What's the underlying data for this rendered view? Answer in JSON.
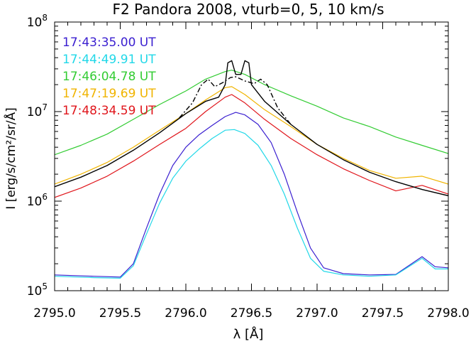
{
  "chart_data": {
    "type": "line",
    "title": "F2 Pandora 2008, vturb=0, 5, 10 km/s",
    "xlabel": "λ [Å]",
    "ylabel": "I [erg/s/cm²/sr/Å]",
    "xlim": [
      2795.0,
      2798.0
    ],
    "ylim": [
      100000,
      100000000
    ],
    "yscale": "log",
    "grid": false,
    "legend_position": "top-left",
    "x_ticks": [
      2795.0,
      2795.5,
      2796.0,
      2796.5,
      2797.0,
      2797.5,
      2798.0
    ],
    "x_tick_labels": [
      "2795.0",
      "2795.5",
      "2796.0",
      "2796.5",
      "2797.0",
      "2797.5",
      "2798.0"
    ],
    "y_tick_labels": [
      {
        "base": "10",
        "exp": "5",
        "value": 100000
      },
      {
        "base": "10",
        "exp": "6",
        "value": 1000000
      },
      {
        "base": "10",
        "exp": "7",
        "value": 10000000
      },
      {
        "base": "10",
        "exp": "8",
        "value": 100000000
      }
    ],
    "series": [
      {
        "name": "17:43:35.00 UT",
        "color": "#3a1fd0",
        "style": "solid",
        "points": [
          [
            2795.0,
            150000
          ],
          [
            2795.3,
            145000
          ],
          [
            2795.5,
            142000
          ],
          [
            2795.6,
            200000
          ],
          [
            2795.7,
            500000
          ],
          [
            2795.8,
            1200000
          ],
          [
            2795.9,
            2500000
          ],
          [
            2796.0,
            4000000
          ],
          [
            2796.1,
            5500000
          ],
          [
            2796.2,
            7000000
          ],
          [
            2796.3,
            8800000
          ],
          [
            2796.38,
            9800000
          ],
          [
            2796.45,
            9200000
          ],
          [
            2796.55,
            7200000
          ],
          [
            2796.65,
            4500000
          ],
          [
            2796.75,
            2000000
          ],
          [
            2796.85,
            750000
          ],
          [
            2796.95,
            300000
          ],
          [
            2797.05,
            180000
          ],
          [
            2797.2,
            155000
          ],
          [
            2797.4,
            150000
          ],
          [
            2797.6,
            152000
          ],
          [
            2797.8,
            240000
          ],
          [
            2797.9,
            185000
          ],
          [
            2798.0,
            180000
          ]
        ]
      },
      {
        "name": "17:44:49.91 UT",
        "color": "#22d8e8",
        "style": "solid",
        "points": [
          [
            2795.0,
            145000
          ],
          [
            2795.3,
            140000
          ],
          [
            2795.5,
            138000
          ],
          [
            2795.6,
            190000
          ],
          [
            2795.7,
            430000
          ],
          [
            2795.8,
            950000
          ],
          [
            2795.9,
            1800000
          ],
          [
            2796.0,
            2800000
          ],
          [
            2796.1,
            3800000
          ],
          [
            2796.2,
            5000000
          ],
          [
            2796.3,
            6200000
          ],
          [
            2796.37,
            6300000
          ],
          [
            2796.45,
            5700000
          ],
          [
            2796.55,
            4200000
          ],
          [
            2796.65,
            2500000
          ],
          [
            2796.75,
            1200000
          ],
          [
            2796.85,
            500000
          ],
          [
            2796.95,
            230000
          ],
          [
            2797.05,
            165000
          ],
          [
            2797.2,
            150000
          ],
          [
            2797.4,
            145000
          ],
          [
            2797.6,
            150000
          ],
          [
            2797.8,
            230000
          ],
          [
            2797.9,
            175000
          ],
          [
            2798.0,
            175000
          ]
        ]
      },
      {
        "name": "17:46:04.78 UT",
        "color": "#33cc33",
        "style": "solid",
        "points": [
          [
            2795.0,
            3300000
          ],
          [
            2795.2,
            4200000
          ],
          [
            2795.4,
            5600000
          ],
          [
            2795.6,
            8200000
          ],
          [
            2795.8,
            12000000
          ],
          [
            2796.0,
            17000000
          ],
          [
            2796.15,
            23000000
          ],
          [
            2796.3,
            28000000
          ],
          [
            2796.35,
            29000000
          ],
          [
            2796.45,
            26000000
          ],
          [
            2796.6,
            20000000
          ],
          [
            2796.8,
            15000000
          ],
          [
            2797.0,
            11500000
          ],
          [
            2797.2,
            8500000
          ],
          [
            2797.4,
            6800000
          ],
          [
            2797.6,
            5200000
          ],
          [
            2797.8,
            4200000
          ],
          [
            2798.0,
            3400000
          ]
        ]
      },
      {
        "name": "17:47:19.69 UT",
        "color": "#f0b400",
        "style": "solid",
        "points": [
          [
            2795.0,
            1550000
          ],
          [
            2795.2,
            2000000
          ],
          [
            2795.4,
            2700000
          ],
          [
            2795.6,
            4000000
          ],
          [
            2795.8,
            6200000
          ],
          [
            2796.0,
            9500000
          ],
          [
            2796.15,
            13500000
          ],
          [
            2796.3,
            18500000
          ],
          [
            2796.35,
            19000000
          ],
          [
            2796.45,
            15500000
          ],
          [
            2796.6,
            10500000
          ],
          [
            2796.8,
            6800000
          ],
          [
            2797.0,
            4300000
          ],
          [
            2797.2,
            3000000
          ],
          [
            2797.4,
            2200000
          ],
          [
            2797.6,
            1800000
          ],
          [
            2797.8,
            1900000
          ],
          [
            2798.0,
            1550000
          ]
        ]
      },
      {
        "name": "17:48:34.59 UT",
        "color": "#e0161c",
        "style": "solid",
        "points": [
          [
            2795.0,
            1100000
          ],
          [
            2795.2,
            1400000
          ],
          [
            2795.4,
            1900000
          ],
          [
            2795.6,
            2800000
          ],
          [
            2795.8,
            4300000
          ],
          [
            2796.0,
            6500000
          ],
          [
            2796.15,
            10000000
          ],
          [
            2796.3,
            14500000
          ],
          [
            2796.35,
            15500000
          ],
          [
            2796.45,
            12500000
          ],
          [
            2796.6,
            8200000
          ],
          [
            2796.8,
            5000000
          ],
          [
            2797.0,
            3300000
          ],
          [
            2797.2,
            2300000
          ],
          [
            2797.4,
            1700000
          ],
          [
            2797.6,
            1300000
          ],
          [
            2797.8,
            1500000
          ],
          [
            2798.0,
            1200000
          ]
        ]
      },
      {
        "color": "#000000",
        "style": "solid",
        "points": [
          [
            2795.0,
            1450000
          ],
          [
            2795.2,
            1850000
          ],
          [
            2795.4,
            2500000
          ],
          [
            2795.6,
            3700000
          ],
          [
            2795.8,
            5800000
          ],
          [
            2796.0,
            9500000
          ],
          [
            2796.15,
            13000000
          ],
          [
            2796.25,
            14500000
          ],
          [
            2796.3,
            20000000
          ],
          [
            2796.32,
            35000000
          ],
          [
            2796.35,
            37000000
          ],
          [
            2796.38,
            26000000
          ],
          [
            2796.42,
            26000000
          ],
          [
            2796.45,
            37000000
          ],
          [
            2796.48,
            35000000
          ],
          [
            2796.5,
            20000000
          ],
          [
            2796.6,
            13000000
          ],
          [
            2796.8,
            7200000
          ],
          [
            2797.0,
            4300000
          ],
          [
            2797.2,
            2900000
          ],
          [
            2797.4,
            2100000
          ],
          [
            2797.6,
            1650000
          ],
          [
            2797.8,
            1350000
          ],
          [
            2798.0,
            1150000
          ]
        ]
      },
      {
        "color": "#000000",
        "style": "dashdot",
        "points": [
          [
            2795.95,
            8500000
          ],
          [
            2796.05,
            12500000
          ],
          [
            2796.12,
            20000000
          ],
          [
            2796.17,
            23000000
          ],
          [
            2796.22,
            19000000
          ],
          [
            2796.28,
            21000000
          ],
          [
            2796.34,
            24000000
          ],
          [
            2796.38,
            24500000
          ],
          [
            2796.45,
            22000000
          ],
          [
            2796.52,
            20500000
          ],
          [
            2796.57,
            23000000
          ],
          [
            2796.62,
            20000000
          ],
          [
            2796.7,
            11000000
          ],
          [
            2796.8,
            7200000
          ]
        ]
      }
    ]
  }
}
